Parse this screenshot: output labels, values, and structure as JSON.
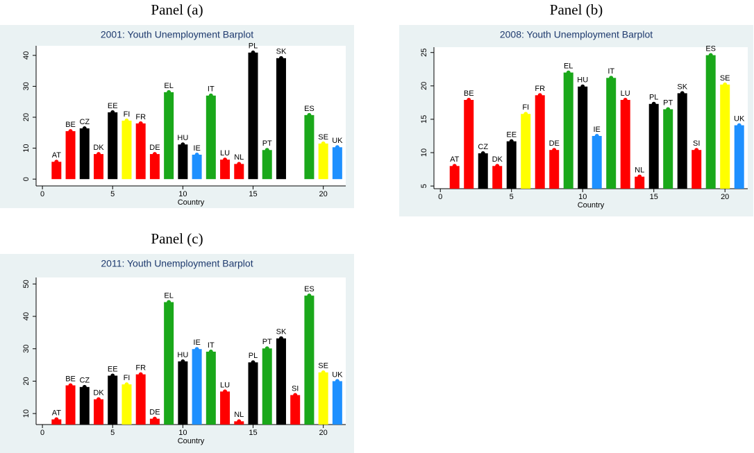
{
  "chart_data": [
    {
      "type": "bar",
      "panel": "Panel (a)",
      "title": "2001: Youth Unemployment Barplot",
      "xlabel": "Country",
      "x": [
        1,
        2,
        3,
        4,
        5,
        6,
        7,
        8,
        9,
        10,
        11,
        12,
        13,
        14,
        15,
        16,
        17,
        18,
        19,
        20,
        21
      ],
      "values": [
        5.6,
        15.5,
        16.4,
        8.1,
        21.6,
        18.9,
        18.0,
        8.1,
        28.1,
        11.2,
        7.9,
        27.0,
        6.3,
        4.9,
        40.9,
        9.4,
        39.1,
        null,
        20.7,
        11.5,
        10.3
      ],
      "bar_labels": [
        "AT",
        "BE",
        "CZ",
        "DK",
        "EE",
        "FI",
        "FR",
        "DE",
        "EL",
        "HU",
        "IE",
        "IT",
        "LU",
        "NL",
        "PL",
        "PT",
        "SK",
        null,
        "ES",
        "SE",
        "UK"
      ],
      "colors": [
        "#ff0000",
        "#ff0000",
        "#000000",
        "#ff0000",
        "#000000",
        "#ffff00",
        "#ff0000",
        "#ff0000",
        "#1aa81a",
        "#000000",
        "#1e90ff",
        "#1aa81a",
        "#ff0000",
        "#ff0000",
        "#000000",
        "#1aa81a",
        "#000000",
        "#ff0000",
        "#1aa81a",
        "#ffff00",
        "#1e90ff"
      ],
      "xlim": [
        -0.45,
        21.6
      ],
      "xticks": [
        0,
        5,
        10,
        15,
        20
      ],
      "ylim": [
        -2.2,
        43.1
      ],
      "yticks": [
        0,
        10,
        20,
        30,
        40
      ]
    },
    {
      "type": "bar",
      "panel": "Panel (b)",
      "title": "2008: Youth Unemployment Barplot",
      "xlabel": "Country",
      "x": [
        1,
        2,
        3,
        4,
        5,
        6,
        7,
        8,
        9,
        10,
        11,
        12,
        13,
        14,
        15,
        16,
        17,
        18,
        19,
        20,
        21
      ],
      "values": [
        8.0,
        17.9,
        9.9,
        8.0,
        11.7,
        15.8,
        18.6,
        10.4,
        22.0,
        19.9,
        12.5,
        21.2,
        17.9,
        6.4,
        17.3,
        16.5,
        18.9,
        10.4,
        24.6,
        20.2,
        14.1
      ],
      "bar_labels": [
        "AT",
        "BE",
        "CZ",
        "DK",
        "EE",
        "FI",
        "FR",
        "DE",
        "EL",
        "HU",
        "IE",
        "IT",
        "LU",
        "NL",
        "PL",
        "PT",
        "SK",
        "SI",
        "ES",
        "SE",
        "UK"
      ],
      "colors": [
        "#ff0000",
        "#ff0000",
        "#000000",
        "#ff0000",
        "#000000",
        "#ffff00",
        "#ff0000",
        "#ff0000",
        "#1aa81a",
        "#000000",
        "#1e90ff",
        "#1aa81a",
        "#ff0000",
        "#ff0000",
        "#000000",
        "#1aa81a",
        "#000000",
        "#ff0000",
        "#1aa81a",
        "#ffff00",
        "#1e90ff"
      ],
      "xlim": [
        -0.45,
        21.6
      ],
      "xticks": [
        0,
        5,
        10,
        15,
        20
      ],
      "ylim": [
        4.6,
        25.8
      ],
      "yticks": [
        5,
        10,
        15,
        20,
        25
      ]
    },
    {
      "type": "bar",
      "panel": "Panel (c)",
      "title": "2011: Youth Unemployment Barplot",
      "xlabel": "Country",
      "x": [
        1,
        2,
        3,
        4,
        5,
        6,
        7,
        8,
        9,
        10,
        11,
        12,
        13,
        14,
        15,
        16,
        17,
        18,
        19,
        20,
        21
      ],
      "values": [
        8.2,
        18.7,
        18.2,
        14.4,
        21.7,
        19.0,
        22.1,
        8.4,
        44.4,
        26.1,
        29.9,
        29.1,
        16.8,
        7.6,
        25.8,
        30.1,
        33.2,
        15.7,
        46.4,
        22.7,
        20.0
      ],
      "bar_labels": [
        "AT",
        "BE",
        "CZ",
        "DK",
        "EE",
        "FI",
        "FR",
        "DE",
        "EL",
        "HU",
        "IE",
        "IT",
        "LU",
        "NL",
        "PL",
        "PT",
        "SK",
        "SI",
        "ES",
        "SE",
        "UK"
      ],
      "colors": [
        "#ff0000",
        "#ff0000",
        "#000000",
        "#ff0000",
        "#000000",
        "#ffff00",
        "#ff0000",
        "#ff0000",
        "#1aa81a",
        "#000000",
        "#1e90ff",
        "#1aa81a",
        "#ff0000",
        "#ff0000",
        "#000000",
        "#1aa81a",
        "#000000",
        "#ff0000",
        "#1aa81a",
        "#ffff00",
        "#1e90ff"
      ],
      "xlim": [
        -0.45,
        21.6
      ],
      "xticks": [
        0,
        5,
        10,
        15,
        20
      ],
      "ylim": [
        6.6,
        52
      ],
      "yticks": [
        10,
        20,
        30,
        40,
        50
      ]
    }
  ]
}
